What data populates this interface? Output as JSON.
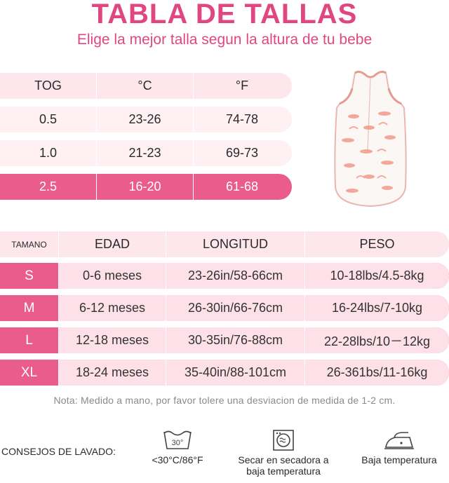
{
  "header": {
    "title": "TABLA DE TALLAS",
    "subtitle": "Elige la mejor talla segun la altura de tu bebe"
  },
  "tog_table": {
    "columns": [
      "TOG",
      "°C",
      "°F"
    ],
    "rows": [
      [
        "0.5",
        "23-26",
        "74-78"
      ],
      [
        "1.0",
        "21-23",
        "69-73"
      ],
      [
        "2.5",
        "16-20",
        "61-68"
      ]
    ]
  },
  "size_table": {
    "columns": [
      "TAMANO",
      "EDAD",
      "LONGITUD",
      "PESO"
    ],
    "rows": [
      [
        "S",
        "0-6 meses",
        "23-26in/58-66cm",
        "10-18lbs/4.5-8kg"
      ],
      [
        "M",
        "6-12 meses",
        "26-30in/66-76cm",
        "16-24lbs/7-10kg"
      ],
      [
        "L",
        "12-18 meses",
        "30-35in/76-88cm",
        "22-28lbs/10－12kg"
      ],
      [
        "XL",
        "18-24 meses",
        "35-40in/88-101cm",
        "26-361bs/11-16kg"
      ]
    ]
  },
  "note": "Nota: Medido a mano, por favor tolere una desviacion de medida de 1-2 cm.",
  "care": {
    "label": "CONSEJOS DE LAVADO:",
    "items": [
      {
        "icon": "wash-30-icon",
        "icon_text": "30°",
        "label": "<30°C/86°F"
      },
      {
        "icon": "tumble-dry-icon",
        "label_line1": "Secar en secadora a",
        "label_line2": "baja temperatura"
      },
      {
        "icon": "iron-low-icon",
        "label": "Baja temperatura"
      }
    ]
  },
  "colors": {
    "accent": "#e0467f",
    "row_pink": "#ea5c8c",
    "row_light": "#fde6ec"
  }
}
